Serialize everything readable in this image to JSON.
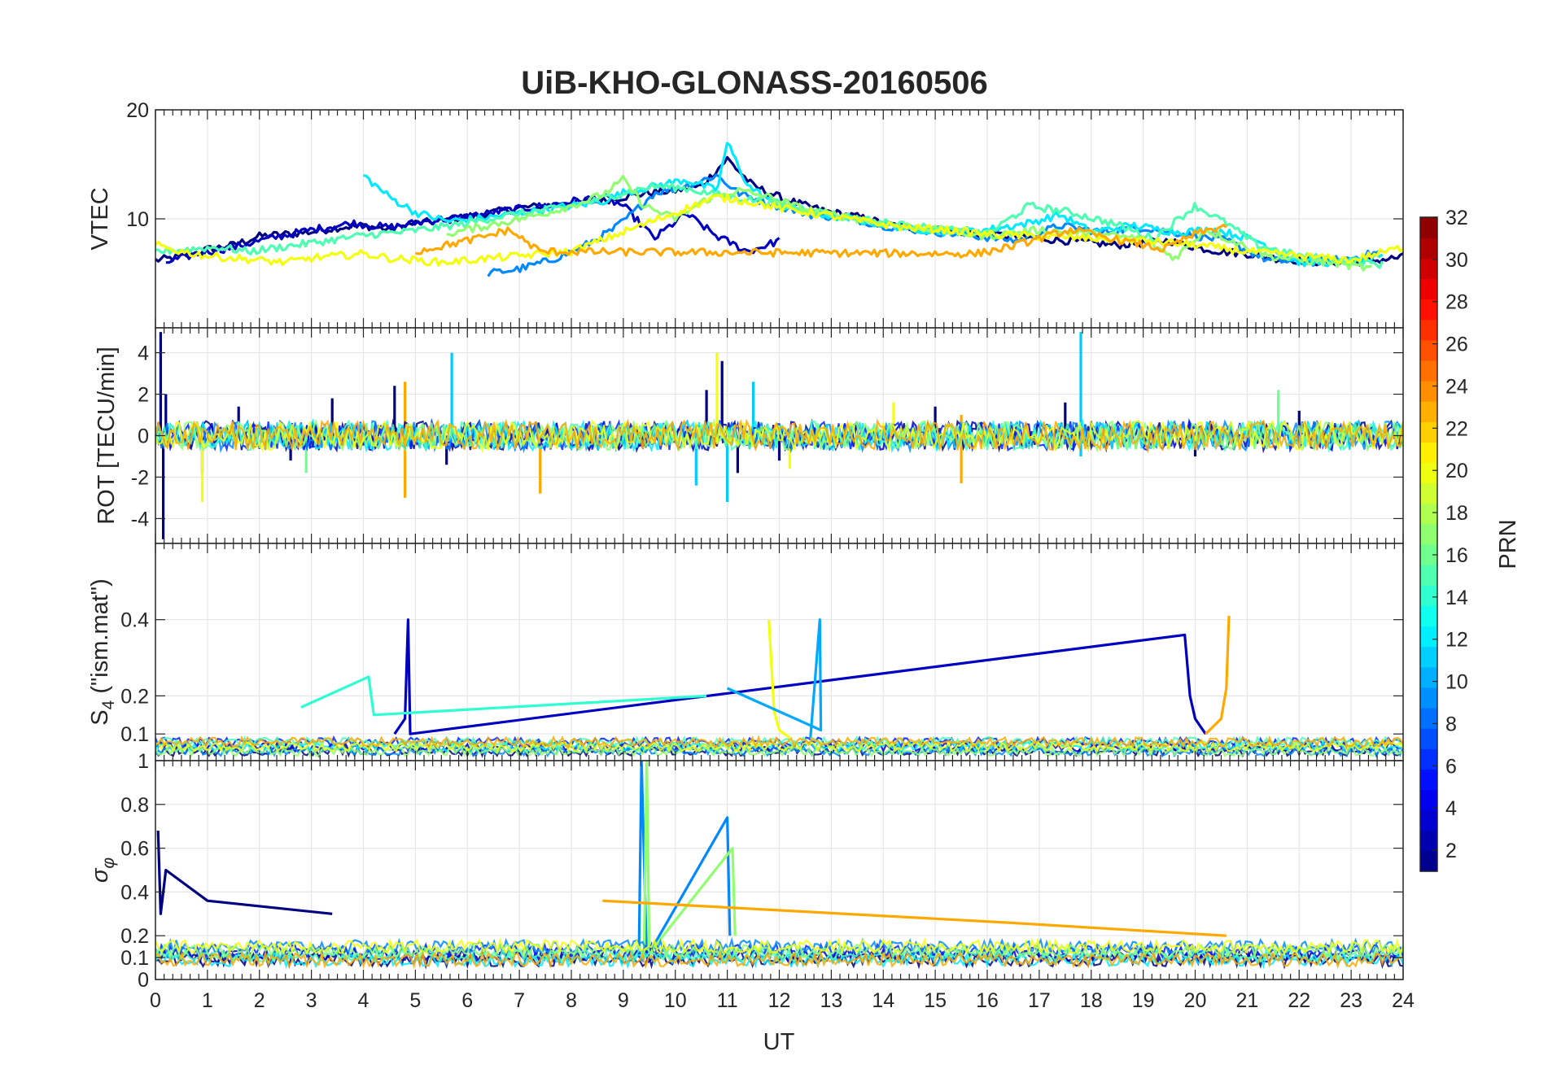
{
  "figure": {
    "title": "UiB-KHO-GLONASS-20160506"
  },
  "chart_data": [
    {
      "type": "line",
      "panel": "vtec",
      "ylabel": "VTEC",
      "xlim": [
        0,
        24
      ],
      "ylim": [
        0,
        20
      ],
      "yticks": [
        0,
        10,
        20
      ],
      "ytick_labels": [
        "",
        "10",
        "20"
      ],
      "xticks": [
        0,
        1,
        2,
        3,
        4,
        5,
        6,
        7,
        8,
        9,
        10,
        11,
        12,
        13,
        14,
        15,
        16,
        17,
        18,
        19,
        20,
        21,
        22,
        23,
        24
      ],
      "series": [
        {
          "prn": 1,
          "x": [
            0,
            0.5,
            1,
            1.5,
            2,
            2.5,
            3,
            3.5,
            4,
            4.5,
            5,
            5.5,
            6,
            6.5,
            7,
            7.5,
            8,
            8.5,
            9,
            9.5,
            10,
            10.5,
            11,
            11.5,
            12,
            12.5,
            13,
            13.5,
            14,
            14.5,
            15,
            15.5,
            16,
            16.5,
            17,
            17.5,
            18,
            18.5,
            19,
            19.5,
            20,
            20.5,
            21,
            21.5,
            22,
            22.5,
            23,
            23.5,
            24
          ],
          "y": [
            6.2,
            6.5,
            7.2,
            7.6,
            8.4,
            8.6,
            8.8,
            9.2,
            9.4,
            9.0,
            9.6,
            9.8,
            10.2,
            10.6,
            11.0,
            11.2,
            11.4,
            11.6,
            12.0,
            12.4,
            12.6,
            13.0,
            15.5,
            13.0,
            12.0,
            11.2,
            10.6,
            10.2,
            9.6,
            9.2,
            9.0,
            8.8,
            8.6,
            8.4,
            8.2,
            8.0,
            7.8,
            7.6,
            7.8,
            8.0,
            7.4,
            7.0,
            6.8,
            6.4,
            6.2,
            6.0,
            6.0,
            6.2,
            6.5
          ]
        },
        {
          "prn": 3,
          "x": [
            0.2,
            0.8,
            1.5,
            2.2,
            3.0,
            3.8,
            4.5,
            5.2,
            6.0,
            6.8,
            7.5,
            8.0,
            8.6,
            9.0,
            9.6,
            10.2,
            10.8,
            11.4,
            12.0
          ],
          "y": [
            6.0,
            6.8,
            7.4,
            8.2,
            9.0,
            9.6,
            9.2,
            9.8,
            10.2,
            10.8,
            11.2,
            11.6,
            12.0,
            11.2,
            8.2,
            10.5,
            8.4,
            7.0,
            8.0
          ]
        },
        {
          "prn": 9,
          "x": [
            6.4,
            7.0,
            7.6,
            8.2,
            8.8,
            9.2,
            9.6,
            10.2,
            10.8,
            11.2,
            11.8,
            12.6,
            13.4,
            14.2,
            15.0,
            15.8,
            16.6,
            17.4,
            18.2,
            19.0,
            19.8,
            20.6,
            21.4,
            22.2,
            23.0,
            23.6
          ],
          "y": [
            5.0,
            5.4,
            6.2,
            7.4,
            9.0,
            10.6,
            12.4,
            13.0,
            14.0,
            12.4,
            11.4,
            10.4,
            10.0,
            9.2,
            8.8,
            8.4,
            8.0,
            9.4,
            8.8,
            9.2,
            8.6,
            8.0,
            6.2,
            6.0,
            6.4,
            7.0
          ]
        },
        {
          "prn": 12,
          "x": [
            4.0,
            4.5,
            5.0,
            5.6,
            6.2,
            6.8,
            7.4,
            8.0,
            8.6,
            9.0,
            9.6,
            10.2,
            10.8,
            11.0,
            11.4,
            12.0,
            12.8,
            13.6,
            14.4,
            15.2,
            16.0,
            16.8,
            17.4,
            18.0,
            18.8,
            19.6,
            20.4,
            21.2,
            22.0,
            22.8,
            23.6
          ],
          "y": [
            14.0,
            12.0,
            10.6,
            9.8,
            10.0,
            10.4,
            10.8,
            11.2,
            11.6,
            12.4,
            13.0,
            13.6,
            12.6,
            17.0,
            13.0,
            11.2,
            10.4,
            9.8,
            9.2,
            8.8,
            9.0,
            9.6,
            10.4,
            8.8,
            9.4,
            8.8,
            9.0,
            8.0,
            6.0,
            6.0,
            6.4
          ]
        },
        {
          "prn": 15,
          "x": [
            0,
            0.6,
            1.2,
            1.8,
            2.4,
            3.0,
            3.6,
            4.2,
            4.8,
            5.4,
            6.0,
            6.6,
            7.2,
            7.8,
            8.4,
            9.0,
            9.6,
            10.2,
            10.8,
            11.4,
            12.0,
            12.8,
            13.6,
            14.4,
            15.2,
            16.0,
            16.8,
            17.6,
            18.4,
            19.2,
            20.0,
            20.6,
            21.2,
            22.0,
            22.8,
            23.6
          ],
          "y": [
            7.0,
            7.2,
            7.4,
            7.0,
            7.4,
            7.8,
            8.2,
            8.6,
            8.8,
            9.2,
            9.6,
            10.2,
            10.6,
            11.0,
            11.6,
            12.4,
            13.0,
            12.8,
            12.2,
            11.8,
            11.4,
            10.6,
            10.0,
            9.4,
            9.0,
            8.6,
            11.2,
            10.6,
            9.6,
            8.2,
            11.2,
            9.6,
            7.6,
            6.6,
            6.2,
            5.8
          ]
        },
        {
          "prn": 17,
          "x": [
            5.6,
            6.2,
            6.8,
            7.4,
            8.0,
            8.6,
            9.0,
            9.4,
            10.0,
            10.6,
            11.2,
            11.8,
            12.4,
            13.0,
            14.0,
            15.0,
            16.0,
            17.0,
            18.0,
            19.0,
            19.6,
            20.2,
            20.8,
            21.4,
            22.0,
            22.6,
            23.4
          ],
          "y": [
            8.6,
            9.2,
            9.8,
            10.4,
            11.2,
            12.2,
            13.6,
            11.2,
            10.0,
            11.8,
            12.6,
            12.0,
            11.0,
            10.4,
            9.6,
            9.0,
            8.4,
            9.0,
            8.6,
            8.2,
            6.4,
            9.0,
            7.8,
            6.6,
            6.2,
            6.0,
            5.4
          ]
        },
        {
          "prn": 20,
          "x": [
            0,
            0.5,
            1.0,
            1.5,
            2.0,
            2.5,
            3.0,
            3.5,
            4.0,
            4.5,
            5.0,
            5.5,
            6.0,
            6.5,
            7.0,
            7.5,
            8.0,
            10.8,
            11.4,
            12.0,
            12.8,
            13.6,
            14.4,
            15.2,
            16.0,
            17.0,
            18.0,
            19.0,
            20.0,
            21.0,
            22.0,
            23.0,
            24.0
          ],
          "y": [
            7.6,
            7.0,
            6.6,
            6.4,
            6.2,
            6.0,
            6.4,
            6.6,
            6.8,
            6.4,
            6.2,
            6.0,
            6.2,
            6.4,
            6.6,
            6.8,
            7.0,
            12.0,
            11.6,
            11.0,
            10.4,
            9.8,
            9.2,
            9.0,
            8.6,
            8.4,
            8.2,
            8.0,
            7.6,
            7.0,
            6.6,
            6.2,
            7.4
          ]
        },
        {
          "prn": 23,
          "x": [
            5.0,
            5.6,
            6.2,
            6.8,
            7.4,
            15.8,
            16.4,
            17.0,
            17.6,
            18.2,
            18.8,
            19.4,
            20.0,
            20.6
          ],
          "y": [
            7.0,
            7.6,
            8.2,
            9.0,
            7.0,
            6.8,
            7.4,
            8.2,
            9.0,
            8.4,
            7.8,
            7.2,
            8.6,
            9.4
          ]
        }
      ]
    },
    {
      "type": "line",
      "panel": "rot",
      "ylabel": "ROT [TECU/min]",
      "xlim": [
        0,
        24
      ],
      "ylim": [
        -5.2,
        5.2
      ],
      "yticks": [
        -4,
        -2,
        0,
        2,
        4
      ],
      "ytick_labels": [
        "-4",
        "-2",
        "0",
        "2",
        "4"
      ],
      "series": [
        {
          "prn": 1,
          "x": [
            0.1,
            0.15,
            0.2,
            0.9,
            1.6,
            2.6,
            3.4,
            4.6,
            5.6,
            10.6,
            10.9,
            11.2,
            12.0,
            15.0,
            17.5,
            20.0,
            22.0
          ],
          "y": [
            5.0,
            -5.0,
            2.0,
            -1.8,
            1.4,
            -1.2,
            1.8,
            2.4,
            -1.4,
            2.2,
            3.6,
            -1.8,
            -1.2,
            1.4,
            1.6,
            -1.0,
            1.2
          ]
        },
        {
          "prn": 11,
          "x": [
            5.7,
            10.4,
            11.0,
            11.5,
            17.8,
            17.8
          ],
          "y": [
            4.0,
            -2.4,
            -3.2,
            2.6,
            5.0,
            -1.0
          ]
        },
        {
          "prn": 20,
          "x": [
            0.9,
            10.8,
            12.2,
            14.2
          ],
          "y": [
            -3.2,
            4.0,
            -1.6,
            1.6
          ]
        },
        {
          "prn": 23,
          "x": [
            4.8,
            4.8,
            7.4,
            15.5,
            15.5
          ],
          "y": [
            2.6,
            -3.0,
            -2.8,
            -2.3,
            1.0
          ]
        },
        {
          "prn": 16,
          "x": [
            2.9,
            21.6
          ],
          "y": [
            -1.8,
            2.2
          ]
        }
      ]
    },
    {
      "type": "line",
      "panel": "s4",
      "ylabel": "S4 (\"ism.mat\")",
      "ylabel_main": "S",
      "ylabel_sub": "4",
      "ylabel_rest": " (\"ism.mat\")",
      "xlim": [
        0,
        24
      ],
      "ylim": [
        0.03,
        0.6
      ],
      "yticks": [
        0.1,
        0.2,
        0.4
      ],
      "ytick_labels": [
        "0.1",
        "0.2",
        "0.4"
      ],
      "series": [
        {
          "prn": 3,
          "x": [
            4.6,
            4.8,
            4.86,
            4.9,
            19.8,
            19.9,
            20.0,
            20.2
          ],
          "y": [
            0.1,
            0.14,
            0.4,
            0.1,
            0.36,
            0.2,
            0.14,
            0.1
          ]
        },
        {
          "prn": 20,
          "x": [
            11.8,
            11.9,
            12.0,
            12.2
          ],
          "y": [
            0.4,
            0.16,
            0.11,
            0.09
          ]
        },
        {
          "prn": 10,
          "x": [
            12.6,
            12.78,
            12.8,
            11.0
          ],
          "y": [
            0.09,
            0.4,
            0.11,
            0.22
          ]
        },
        {
          "prn": 23,
          "x": [
            20.2,
            20.5,
            20.6,
            20.65
          ],
          "y": [
            0.1,
            0.14,
            0.22,
            0.41
          ]
        },
        {
          "prn": 14,
          "x": [
            2.8,
            4.1,
            4.2,
            10.6
          ],
          "y": [
            0.17,
            0.25,
            0.15,
            0.2
          ]
        }
      ]
    },
    {
      "type": "line",
      "panel": "sigma_phi",
      "ylabel": "σφ",
      "ylabel_main": "σ",
      "ylabel_sub": "φ",
      "xlim": [
        0,
        24
      ],
      "ylim": [
        0,
        1.0
      ],
      "yticks": [
        0,
        0.1,
        0.2,
        0.4,
        0.6,
        0.8,
        1
      ],
      "ytick_labels": [
        "0",
        "0.1",
        "0.2",
        "0.4",
        "0.6",
        "0.8",
        "1"
      ],
      "xlabel": "UT",
      "series": [
        {
          "prn": 1,
          "x": [
            0.05,
            0.1,
            0.2,
            1.0,
            3.4
          ],
          "y": [
            0.68,
            0.3,
            0.5,
            0.36,
            0.3
          ]
        },
        {
          "prn": 9,
          "x": [
            9.3,
            9.35,
            9.45,
            11.0,
            11.05
          ],
          "y": [
            0.1,
            1.0,
            0.1,
            0.74,
            0.2
          ]
        },
        {
          "prn": 17,
          "x": [
            9.4,
            9.45,
            9.5,
            11.1,
            11.15
          ],
          "y": [
            0.12,
            1.0,
            0.12,
            0.6,
            0.2
          ]
        },
        {
          "prn": 23,
          "x": [
            8.6,
            16.4,
            20.6
          ],
          "y": [
            0.36,
            0.26,
            0.2
          ]
        }
      ]
    }
  ],
  "x_axis": {
    "label": "UT",
    "tick_labels": [
      "0",
      "1",
      "2",
      "3",
      "4",
      "5",
      "6",
      "7",
      "8",
      "9",
      "10",
      "11",
      "12",
      "13",
      "14",
      "15",
      "16",
      "17",
      "18",
      "19",
      "20",
      "21",
      "22",
      "23",
      "24"
    ]
  },
  "colorbar": {
    "label": "PRN",
    "range": [
      1,
      32
    ],
    "tick_labels": [
      "2",
      "4",
      "6",
      "8",
      "10",
      "12",
      "14",
      "16",
      "18",
      "20",
      "22",
      "24",
      "26",
      "28",
      "30",
      "32"
    ],
    "colormap": "jet"
  }
}
